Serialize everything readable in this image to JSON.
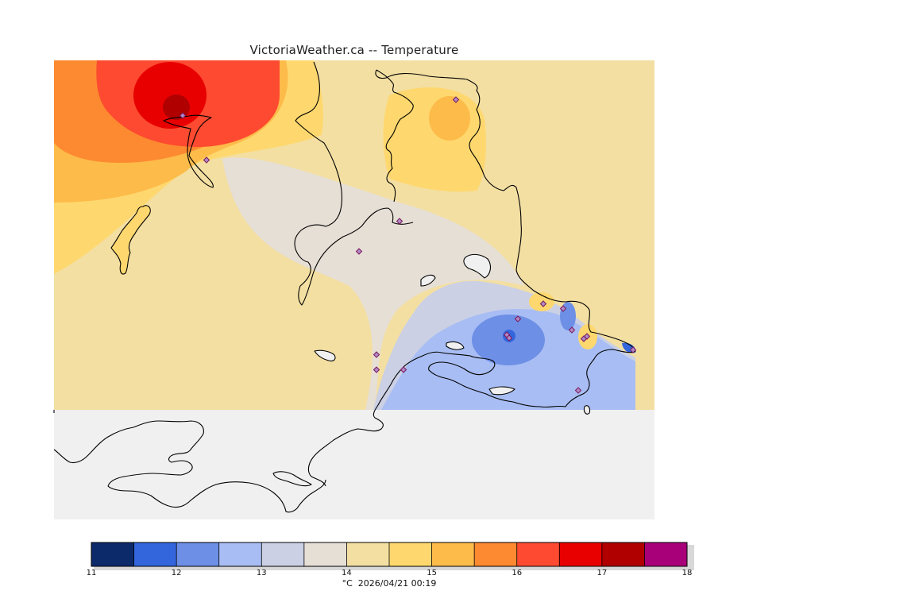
{
  "title": "VictoriaWeather.ca  --  Temperature",
  "footer": {
    "unit": "°C",
    "timestamp": "2026/04/21 00:19"
  },
  "legend": {
    "min": 11,
    "max": 18,
    "tick_labels": [
      "11",
      "12",
      "13",
      "14",
      "15",
      "16",
      "17",
      "18"
    ],
    "colors": [
      "#0c2a6a",
      "#3366dd",
      "#6d8fe6",
      "#a8bdf3",
      "#cbd0e4",
      "#e6dfd6",
      "#f3dfa2",
      "#fed86e",
      "#fdbb4a",
      "#fd8a30",
      "#fd4a30",
      "#e80000",
      "#b00000",
      "#a80078"
    ]
  },
  "map": {
    "land_color": "#f0f0f0",
    "station_count": 18
  }
}
